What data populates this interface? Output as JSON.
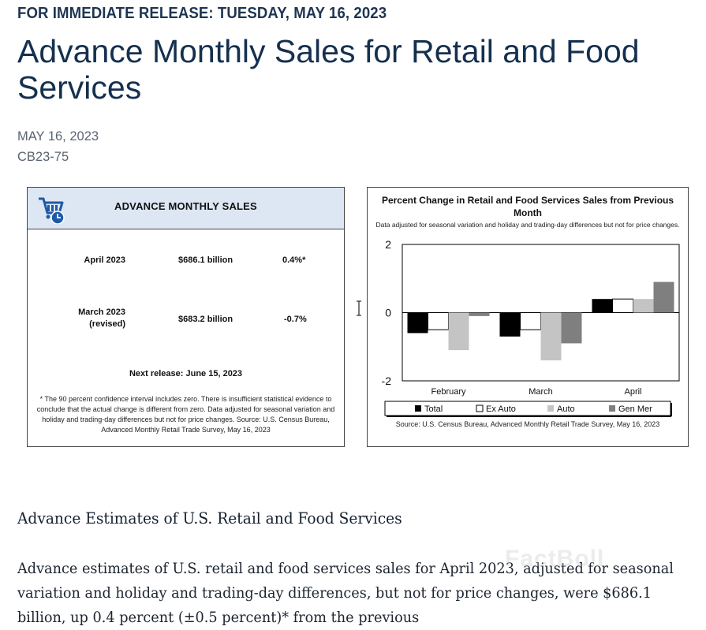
{
  "release": "FOR IMMEDIATE RELEASE: TUESDAY, MAY 16, 2023",
  "title": "Advance Monthly Sales for Retail and Food Services",
  "date": "MAY 16, 2023",
  "code": "CB23-75",
  "sales_panel": {
    "icon": "shopping-cart-clock-icon",
    "title": "ADVANCE MONTHLY SALES",
    "rows": [
      {
        "label": "April 2023",
        "label2": "",
        "value": "$686.1 billion",
        "change": "0.4%*"
      },
      {
        "label": "March 2023",
        "label2": "(revised)",
        "value": "$683.2 billion",
        "change": "-0.7%"
      }
    ],
    "next_release": "Next release: June 15, 2023",
    "footnote": "* The 90 percent confidence interval includes zero. There is insufficient statistical evidence to conclude that the actual change is different from zero. Data adjusted for seasonal variation and holiday and trading-day differences but not for price changes. Source: U.S. Census Bureau, Advanced Monthly Retail Trade Survey, May 16, 2023"
  },
  "chart_data": {
    "type": "bar",
    "title": "Percent Change in Retail and Food Services Sales from Previous Month",
    "subtitle": "Data adjusted for seasonal variation and holiday and trading-day differences but not for price changes.",
    "categories": [
      "February",
      "March",
      "April"
    ],
    "ylim": [
      -2,
      2
    ],
    "yticks": [
      "2",
      "0",
      "-2"
    ],
    "series": [
      {
        "name": "Total",
        "color": "#000000",
        "values": [
          -0.6,
          -0.7,
          0.4
        ]
      },
      {
        "name": "Ex Auto",
        "color": "#ffffff",
        "values": [
          -0.5,
          -0.5,
          0.4
        ]
      },
      {
        "name": "Auto",
        "color": "#c4c4c4",
        "values": [
          -1.1,
          -1.4,
          0.4
        ]
      },
      {
        "name": "Gen Mer",
        "color": "#7f7f7f",
        "values": [
          -0.1,
          -0.9,
          0.9
        ]
      }
    ],
    "legend": "bottom",
    "source": "Source: U.S. Census Bureau, Advanced Monthly Retail Trade Survey, May 16, 2023"
  },
  "section_heading": "Advance Estimates of U.S. Retail and Food Services",
  "body": "Advance estimates of U.S. retail and food services sales for April 2023, adjusted for seasonal variation and holiday and trading-day differences, but not for price changes, were $686.1 billion, up 0.4 percent (±0.5 percent)* from the previous",
  "watermark": "FactBoll"
}
